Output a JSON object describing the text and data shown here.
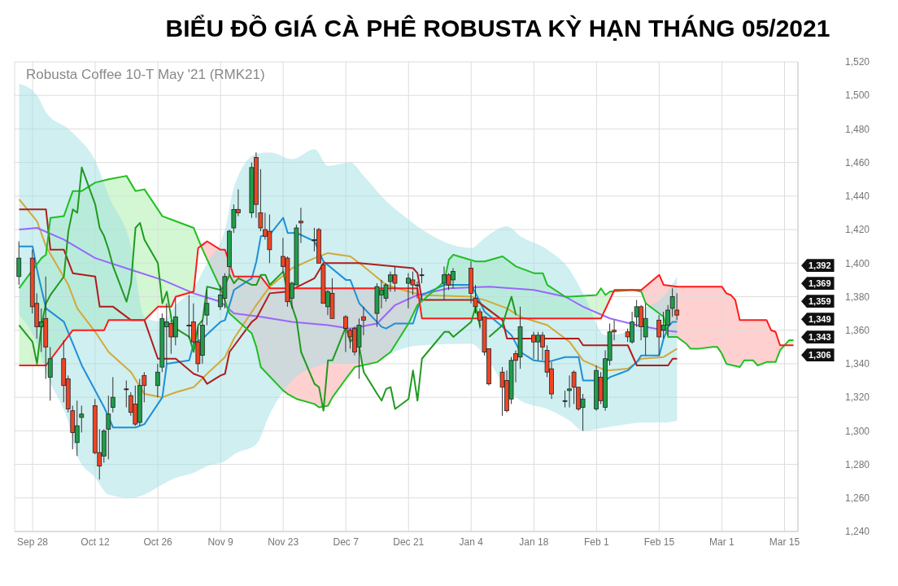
{
  "chart_data": {
    "type": "candlestick",
    "title": "BIỂU ĐỒ GIÁ CÀ PHÊ ROBUSTA KỲ HẠN THÁNG 05/2021",
    "subtitle": "Robusta Coffee 10-T May '21 (RMK21)",
    "x": [
      "2020-09-25",
      "2020-09-28",
      "2020-09-29",
      "2020-09-30",
      "2020-10-01",
      "2020-10-02",
      "2020-10-05",
      "2020-10-06",
      "2020-10-07",
      "2020-10-08",
      "2020-10-09",
      "2020-10-12",
      "2020-10-13",
      "2020-10-14",
      "2020-10-15",
      "2020-10-16",
      "2020-10-19",
      "2020-10-20",
      "2020-10-21",
      "2020-10-22",
      "2020-10-23",
      "2020-10-26",
      "2020-10-27",
      "2020-10-28",
      "2020-10-29",
      "2020-10-30",
      "2020-11-02",
      "2020-11-03",
      "2020-11-04",
      "2020-11-05",
      "2020-11-06",
      "2020-11-09",
      "2020-11-10",
      "2020-11-11",
      "2020-11-12",
      "2020-11-13",
      "2020-11-16",
      "2020-11-17",
      "2020-11-18",
      "2020-11-19",
      "2020-11-20",
      "2020-11-23",
      "2020-11-24",
      "2020-11-25",
      "2020-11-26",
      "2020-11-27",
      "2020-11-30",
      "2020-12-01",
      "2020-12-02",
      "2020-12-03",
      "2020-12-04",
      "2020-12-07",
      "2020-12-08",
      "2020-12-09",
      "2020-12-10",
      "2020-12-11",
      "2020-12-14",
      "2020-12-15",
      "2020-12-16",
      "2020-12-17",
      "2020-12-18",
      "2020-12-21",
      "2020-12-22",
      "2020-12-23",
      "2020-12-24",
      "2020-12-29",
      "2020-12-30",
      "2020-12-31",
      "2021-01-04",
      "2021-01-05",
      "2021-01-06",
      "2021-01-07",
      "2021-01-08",
      "2021-01-11",
      "2021-01-12",
      "2021-01-13",
      "2021-01-14",
      "2021-01-15",
      "2021-01-18",
      "2021-01-19",
      "2021-01-20",
      "2021-01-21",
      "2021-01-22",
      "2021-01-25",
      "2021-01-26",
      "2021-01-27",
      "2021-01-28",
      "2021-01-29",
      "2021-02-01",
      "2021-02-02",
      "2021-02-03",
      "2021-02-04",
      "2021-02-05",
      "2021-02-08",
      "2021-02-09",
      "2021-02-10",
      "2021-02-11",
      "2021-02-12",
      "2021-02-15",
      "2021-02-16",
      "2021-02-17",
      "2021-02-18",
      "2021-02-19"
    ],
    "ohlc": [
      [
        1392,
        1413,
        1387,
        1403
      ],
      [
        1403,
        1408,
        1370,
        1374
      ],
      [
        1376,
        1382,
        1355,
        1362
      ],
      [
        1362,
        1373,
        1347,
        1365
      ],
      [
        1367,
        1392,
        1331,
        1350
      ],
      [
        1332,
        1350,
        1318,
        1343
      ],
      [
        1343,
        1354,
        1317,
        1327
      ],
      [
        1331,
        1333,
        1311,
        1313
      ],
      [
        1312,
        1315,
        1289,
        1299
      ],
      [
        1293,
        1318,
        1285,
        1303
      ],
      [
        1308,
        1315,
        1299,
        1310
      ],
      [
        1315,
        1319,
        1286,
        1287
      ],
      [
        1287,
        1301,
        1271,
        1279
      ],
      [
        1285,
        1301,
        1281,
        1300
      ],
      [
        1301,
        1321,
        1283,
        1310
      ],
      [
        1314,
        1332,
        1311,
        1320
      ],
      [
        1325,
        1330,
        1314,
        1325
      ],
      [
        1321,
        1323,
        1309,
        1311
      ],
      [
        1316,
        1327,
        1303,
        1304
      ],
      [
        1305,
        1331,
        1303,
        1327
      ],
      [
        1333,
        1335,
        1317,
        1327
      ],
      [
        1327,
        1340,
        1320,
        1335
      ],
      [
        1338,
        1370,
        1335,
        1367
      ],
      [
        1362,
        1376,
        1340,
        1365
      ],
      [
        1364,
        1366,
        1346,
        1356
      ],
      [
        1356,
        1379,
        1351,
        1368
      ],
      [
        1363,
        1381,
        1355,
        1363
      ],
      [
        1365,
        1376,
        1352,
        1353
      ],
      [
        1353,
        1362,
        1335,
        1340
      ],
      [
        1345,
        1366,
        1340,
        1363
      ],
      [
        1369,
        1384,
        1363,
        1376
      ],
      [
        1374,
        1387,
        1372,
        1381
      ],
      [
        1379,
        1394,
        1373,
        1392
      ],
      [
        1398,
        1420,
        1393,
        1419
      ],
      [
        1421,
        1435,
        1418,
        1432
      ],
      [
        1432,
        1444,
        1428,
        1430
      ],
      [
        1430,
        1460,
        1427,
        1457
      ],
      [
        1463,
        1466,
        1427,
        1435
      ],
      [
        1430,
        1456,
        1419,
        1421
      ],
      [
        1420,
        1430,
        1414,
        1416
      ],
      [
        1419,
        1429,
        1400,
        1408
      ],
      [
        1404,
        1415,
        1394,
        1398
      ],
      [
        1403,
        1404,
        1374,
        1377
      ],
      [
        1379,
        1389,
        1373,
        1388
      ],
      [
        1387,
        1423,
        1387,
        1421
      ],
      [
        1425,
        1433,
        1412,
        1424
      ],
      [
        1414,
        1421,
        1407,
        1414
      ],
      [
        1420,
        1421,
        1400,
        1400
      ],
      [
        1399,
        1400,
        1376,
        1376
      ],
      [
        1374,
        1384,
        1369,
        1383
      ],
      [
        1382,
        1391,
        1367,
        1367
      ],
      [
        1368,
        1369,
        1347,
        1361
      ],
      [
        1360,
        1361,
        1349,
        1356
      ],
      [
        1361,
        1362,
        1345,
        1347
      ],
      [
        1350,
        1367,
        1331,
        1363
      ],
      [
        1368,
        1374,
        1357,
        1366
      ],
      [
        1370,
        1388,
        1362,
        1386
      ],
      [
        1381,
        1390,
        1373,
        1384
      ],
      [
        1379,
        1388,
        1377,
        1387
      ],
      [
        1389,
        1395,
        1383,
        1393
      ],
      [
        1393,
        1398,
        1383,
        1388
      ],
      [
        1388,
        1394,
        1373,
        1391
      ],
      [
        1390,
        1395,
        1381,
        1387
      ],
      [
        1387,
        1389,
        1379,
        1387
      ],
      [
        1393,
        1397,
        1388,
        1393
      ],
      [
        1388,
        1398,
        1378,
        1393
      ],
      [
        1393,
        1394,
        1384,
        1387
      ],
      [
        1390,
        1397,
        1385,
        1395
      ],
      [
        1397,
        1401,
        1376,
        1382
      ],
      [
        1379,
        1387,
        1370,
        1374
      ],
      [
        1371,
        1373,
        1361,
        1366
      ],
      [
        1368,
        1368,
        1345,
        1347
      ],
      [
        1349,
        1349,
        1327,
        1328
      ],
      [
        1335,
        1338,
        1309,
        1326
      ],
      [
        1330,
        1336,
        1311,
        1312
      ],
      [
        1319,
        1344,
        1316,
        1342
      ],
      [
        1346,
        1348,
        1329,
        1342
      ],
      [
        1344,
        1374,
        1337,
        1362
      ],
      [
        1357,
        1359,
        1343,
        1353
      ],
      [
        1353,
        1359,
        1342,
        1357
      ],
      [
        1357,
        1359,
        1342,
        1350
      ],
      [
        1348,
        1351,
        1332,
        1335
      ],
      [
        1337,
        1341,
        1319,
        1322
      ],
      [
        1318,
        1324,
        1314,
        1318
      ],
      [
        1324,
        1333,
        1314,
        1325
      ],
      [
        1335,
        1336,
        1316,
        1326
      ],
      [
        1326,
        1326,
        1312,
        1313
      ],
      [
        1314,
        1322,
        1300,
        1319
      ],
      [
        1313,
        1339,
        1312,
        1336
      ],
      [
        1332,
        1335,
        1316,
        1318
      ],
      [
        1314,
        1348,
        1312,
        1343
      ],
      [
        1342,
        1364,
        1339,
        1359
      ],
      [
        1360,
        1366,
        1354,
        1359
      ],
      [
        1359,
        1361,
        1353,
        1356
      ],
      [
        1353,
        1371,
        1352,
        1365
      ],
      [
        1368,
        1378,
        1362,
        1374
      ],
      [
        1374,
        1375,
        1354,
        1362
      ],
      [
        1356,
        1376,
        1345,
        1367
      ],
      [
        1366,
        1369,
        1345,
        1356
      ],
      [
        1360,
        1371,
        1355,
        1363
      ],
      [
        1363,
        1375,
        1357,
        1372
      ],
      [
        1373,
        1385,
        1368,
        1380
      ],
      [
        1372,
        1382,
        1366,
        1369
      ]
    ],
    "colors": [
      "#1f9d4a",
      "#ee4424",
      "#ee4424",
      "#1f9d4a",
      "#ee4424",
      "#1f9d4a",
      "#ee4424",
      "#ee4424",
      "#ee4424",
      "#1f9d4a",
      "#1f9d4a",
      "#ee4424",
      "#ee4424",
      "#1f9d4a",
      "#1f9d4a",
      "#1f9d4a",
      "#222222",
      "#ee4424",
      "#ee4424",
      "#1f9d4a",
      "#ee4424",
      "#1f9d4a",
      "#1f9d4a",
      "#1f9d4a",
      "#ee4424",
      "#1f9d4a",
      "#222222",
      "#ee4424",
      "#ee4424",
      "#1f9d4a",
      "#1f9d4a",
      "#1f9d4a",
      "#1f9d4a",
      "#1f9d4a",
      "#1f9d4a",
      "#ee4424",
      "#1f9d4a",
      "#ee4424",
      "#ee4424",
      "#ee4424",
      "#ee4424",
      "#ee4424",
      "#ee4424",
      "#1f9d4a",
      "#1f9d4a",
      "#ee4424",
      "#222222",
      "#ee4424",
      "#ee4424",
      "#1f9d4a",
      "#ee4424",
      "#ee4424",
      "#ee4424",
      "#ee4424",
      "#1f9d4a",
      "#ee4424",
      "#1f9d4a",
      "#1f9d4a",
      "#1f9d4a",
      "#1f9d4a",
      "#ee4424",
      "#1f9d4a",
      "#ee4424",
      "#222222",
      "#222222",
      "#1f9d4a",
      "#ee4424",
      "#1f9d4a",
      "#ee4424",
      "#ee4424",
      "#ee4424",
      "#ee4424",
      "#ee4424",
      "#ee4424",
      "#ee4424",
      "#1f9d4a",
      "#ee4424",
      "#1f9d4a",
      "#ee4424",
      "#1f9d4a",
      "#ee4424",
      "#ee4424",
      "#ee4424",
      "#222222",
      "#1f9d4a",
      "#ee4424",
      "#ee4424",
      "#1f9d4a",
      "#1f9d4a",
      "#ee4424",
      "#1f9d4a",
      "#1f9d4a",
      "#ee4424",
      "#ee4424",
      "#1f9d4a",
      "#1f9d4a",
      "#ee4424",
      "#1f9d4a",
      "#ee4424",
      "#1f9d4a",
      "#1f9d4a",
      "#1f9d4a",
      "#ee4424"
    ],
    "series": [
      {
        "type": "line",
        "color": "#d4a838",
        "x": [
          "2020-09-25",
          "2020-09-29",
          "2020-10-01",
          "2020-10-06",
          "2020-10-08",
          "2020-10-12",
          "2020-10-15",
          "2020-10-20",
          "2020-10-23",
          "2020-10-27",
          "2020-10-30",
          "2020-11-03",
          "2020-11-06",
          "2020-11-10",
          "2020-11-12",
          "2020-11-17",
          "2020-11-20",
          "2020-11-25",
          "2020-11-30",
          "2020-12-03",
          "2020-12-08",
          "2020-12-11",
          "2020-12-16",
          "2020-12-21",
          "2020-12-24",
          "2021-01-04",
          "2021-01-07",
          "2021-01-12",
          "2021-01-15",
          "2021-01-21",
          "2021-01-26",
          "2021-01-29",
          "2021-02-03",
          "2021-02-08",
          "2021-02-11",
          "2021-02-16",
          "2021-02-19"
        ],
        "values": [
          1438,
          1425,
          1410,
          1387,
          1373,
          1359,
          1347,
          1335,
          1322,
          1320,
          1323,
          1326,
          1334,
          1344,
          1355,
          1375,
          1386,
          1397,
          1403,
          1406,
          1404,
          1398,
          1387,
          1383,
          1381,
          1380,
          1378,
          1373,
          1368,
          1363,
          1353,
          1342,
          1336,
          1337,
          1343,
          1344,
          1349
        ],
        "lower": [
          1369,
          1352,
          1335,
          1305,
          1285,
          1272,
          1262,
          1260,
          1262,
          1268,
          1272,
          1275,
          1279,
          1282,
          1286,
          1292,
          1310,
          1330,
          1338,
          1340,
          1340,
          1340,
          1345,
          1350,
          1351,
          1352,
          1345,
          1325,
          1318,
          1313,
          1306,
          1300,
          1302,
          1304,
          1305,
          1305,
          1306
        ],
        "upper": [
          1507,
          1500,
          1490,
          1480,
          1475,
          1461,
          1440,
          1410,
          1368,
          1365,
          1375,
          1385,
          1400,
          1420,
          1445,
          1465,
          1466,
          1462,
          1468,
          1458,
          1460,
          1452,
          1437,
          1426,
          1420,
          1409,
          1415,
          1422,
          1416,
          1408,
          1396,
          1382,
          1357,
          1359,
          1371,
          1380,
          1392
        ]
      },
      {
        "type": "line",
        "color": "#9966ff",
        "x": [
          "2020-09-25",
          "2020-09-29",
          "2020-10-05",
          "2020-10-12",
          "2020-10-20",
          "2020-10-27",
          "2020-11-03",
          "2020-11-09",
          "2020-11-12",
          "2020-11-18",
          "2020-11-25",
          "2020-12-03",
          "2020-12-08",
          "2020-12-14",
          "2020-12-18",
          "2020-12-23",
          "2020-12-30",
          "2021-01-08",
          "2021-01-18",
          "2021-01-25",
          "2021-01-29",
          "2021-02-04",
          "2021-02-10",
          "2021-02-16",
          "2021-02-19"
        ],
        "values": [
          1420,
          1421,
          1414,
          1403,
          1396,
          1390,
          1382,
          1377,
          1370,
          1368,
          1365,
          1363,
          1361,
          1364,
          1375,
          1381,
          1385,
          1386,
          1384,
          1380,
          1374,
          1367,
          1363,
          1360,
          1359
        ]
      },
      {
        "type": "line",
        "color": "#1e8fd6",
        "x": [
          "2020-09-25",
          "2020-09-28",
          "2020-09-29",
          "2020-10-01",
          "2020-10-05",
          "2020-10-07",
          "2020-10-09",
          "2020-10-14",
          "2020-10-16",
          "2020-10-21",
          "2020-10-23",
          "2020-10-27",
          "2020-10-28",
          "2020-11-02",
          "2020-11-03",
          "2020-11-05",
          "2020-11-09",
          "2020-11-10",
          "2020-11-12",
          "2020-11-16",
          "2020-11-17",
          "2020-11-18",
          "2020-11-20",
          "2020-11-23",
          "2020-11-24",
          "2020-11-26",
          "2020-11-30",
          "2020-12-02",
          "2020-12-07",
          "2020-12-08",
          "2020-12-10",
          "2020-12-15",
          "2020-12-16",
          "2020-12-18",
          "2020-12-22",
          "2020-12-24",
          "2020-12-29",
          "2021-01-04",
          "2021-01-05",
          "2021-01-07",
          "2021-01-11",
          "2021-01-13",
          "2021-01-15",
          "2021-01-18",
          "2021-01-21",
          "2021-01-25",
          "2021-01-28",
          "2021-01-29",
          "2021-02-03",
          "2021-02-04",
          "2021-02-08",
          "2021-02-10",
          "2021-02-11",
          "2021-02-15",
          "2021-02-16",
          "2021-02-17",
          "2021-02-18",
          "2021-02-19"
        ],
        "values": [
          1410,
          1410,
          1396,
          1373,
          1365,
          1352,
          1339,
          1314,
          1302,
          1302,
          1304,
          1320,
          1340,
          1342,
          1352,
          1355,
          1365,
          1366,
          1384,
          1391,
          1401,
          1416,
          1417,
          1427,
          1418,
          1418,
          1413,
          1401,
          1390,
          1390,
          1376,
          1362,
          1361,
          1364,
          1364,
          1381,
          1387,
          1387,
          1382,
          1371,
          1362,
          1357,
          1347,
          1342,
          1341,
          1344,
          1344,
          1330,
          1330,
          1332,
          1336,
          1341,
          1345,
          1345,
          1355,
          1362,
          1365,
          1365
        ]
      },
      {
        "type": "line",
        "color": "#b01c1c",
        "x": [
          "2020-09-25",
          "2020-10-01",
          "2020-10-02",
          "2020-10-05",
          "2020-10-07",
          "2020-10-12",
          "2020-10-13",
          "2020-10-16",
          "2020-10-20",
          "2020-10-23",
          "2020-10-26",
          "2020-10-30",
          "2020-11-03",
          "2020-11-05",
          "2020-11-06",
          "2020-11-09",
          "2020-11-10",
          "2020-11-11",
          "2020-11-16",
          "2020-11-17",
          "2020-11-20",
          "2020-11-24",
          "2020-11-30",
          "2020-12-02",
          "2020-12-10",
          "2020-12-22",
          "2020-12-23",
          "2020-12-24",
          "2021-01-05",
          "2021-01-11",
          "2021-01-12",
          "2021-01-15",
          "2021-01-28",
          "2021-01-29",
          "2021-02-08",
          "2021-02-10",
          "2021-02-17",
          "2021-02-18",
          "2021-02-19"
        ],
        "values": [
          1432,
          1432,
          1408,
          1408,
          1394,
          1392,
          1374,
          1374,
          1366,
          1366,
          1343,
          1343,
          1334,
          1332,
          1328,
          1333,
          1334,
          1347,
          1365,
          1367,
          1382,
          1383,
          1391,
          1400,
          1400,
          1397,
          1394,
          1378,
          1378,
          1366,
          1355,
          1355,
          1355,
          1351,
          1351,
          1339,
          1339,
          1343,
          1343
        ]
      },
      {
        "type": "line",
        "color": "#1fbf1f",
        "x": [
          "2020-09-25",
          "2020-09-30",
          "2020-10-01",
          "2020-10-02",
          "2020-10-05",
          "2020-10-07",
          "2020-10-09",
          "2020-10-12",
          "2020-10-15",
          "2020-10-19",
          "2020-10-21",
          "2020-10-23",
          "2020-10-27",
          "2020-10-30",
          "2020-11-03",
          "2020-11-05",
          "2020-11-09",
          "2020-11-11",
          "2020-11-16",
          "2020-11-17",
          "2020-11-18",
          "2020-11-23",
          "2020-11-24",
          "2020-11-26",
          "2020-11-30",
          "2020-12-01",
          "2020-12-03",
          "2020-12-04",
          "2020-12-07",
          "2020-12-09",
          "2020-12-14",
          "2020-12-17",
          "2020-12-21",
          "2020-12-23",
          "2020-12-29",
          "2020-12-30",
          "2020-12-31",
          "2021-01-05",
          "2021-01-07",
          "2021-01-11",
          "2021-01-13",
          "2021-01-14",
          "2021-01-18",
          "2021-01-20",
          "2021-01-21",
          "2021-01-25",
          "2021-01-26",
          "2021-02-01",
          "2021-02-02",
          "2021-02-03",
          "2021-02-04",
          "2021-02-09",
          "2021-02-11",
          "2021-02-12",
          "2021-02-16",
          "2021-02-17",
          "2021-02-19",
          "2021-02-21",
          "2021-02-22",
          "2021-02-24",
          "2021-02-27",
          "2021-02-28",
          "2021-03-01",
          "2021-03-02",
          "2021-03-05",
          "2021-03-06",
          "2021-03-08",
          "2021-03-09",
          "2021-03-11",
          "2021-03-13",
          "2021-03-14",
          "2021-03-16",
          "2021-03-17"
        ],
        "values": [
          1385,
          1403,
          1405,
          1427,
          1428,
          1443,
          1443,
          1448,
          1450,
          1452,
          1443,
          1444,
          1428,
          1425,
          1421,
          1408,
          1385,
          1370,
          1358,
          1350,
          1338,
          1324,
          1322,
          1319,
          1316,
          1314,
          1315,
          1320,
          1331,
          1338,
          1341,
          1347,
          1364,
          1375,
          1389,
          1402,
          1405,
          1401,
          1401,
          1404,
          1400,
          1398,
          1394,
          1394,
          1387,
          1380,
          1380,
          1381,
          1385,
          1381,
          1383,
          1384,
          1383,
          1376,
          1368,
          1356,
          1356,
          1352,
          1349,
          1349,
          1350,
          1350,
          1346,
          1340,
          1338,
          1342,
          1342,
          1339,
          1341,
          1341,
          1348,
          1354,
          1354
        ]
      },
      {
        "type": "line",
        "color": "#ff1a1a",
        "x": [
          "2020-09-25",
          "2020-10-01",
          "2020-10-07",
          "2020-10-14",
          "2020-10-15",
          "2020-10-23",
          "2020-10-26",
          "2020-10-29",
          "2020-10-30",
          "2020-11-03",
          "2020-11-04",
          "2020-11-05",
          "2020-11-06",
          "2020-11-09",
          "2020-11-10",
          "2020-11-12",
          "2020-11-18",
          "2020-11-20",
          "2020-12-23",
          "2020-12-24",
          "2021-02-02",
          "2021-02-05",
          "2021-02-11",
          "2021-02-15",
          "2021-02-16",
          "2021-02-19",
          "2021-03-01",
          "2021-03-02",
          "2021-03-03",
          "2021-03-04",
          "2021-03-05",
          "2021-03-11",
          "2021-03-12",
          "2021-03-13",
          "2021-03-14",
          "2021-03-17"
        ],
        "values": [
          1339,
          1339,
          1360,
          1360,
          1366,
          1366,
          1374,
          1374,
          1380,
          1383,
          1409,
          1411,
          1413,
          1408,
          1408,
          1392,
          1392,
          1385,
          1385,
          1367,
          1367,
          1384,
          1384,
          1393,
          1387,
          1386,
          1386,
          1382,
          1381,
          1378,
          1366,
          1366,
          1360,
          1359,
          1351,
          1351
        ]
      },
      {
        "type": "line",
        "color": "#1f9a1f",
        "x": [
          "2020-09-25",
          "2020-09-28",
          "2020-09-29",
          "2020-09-30",
          "2020-10-01",
          "2020-10-02",
          "2020-10-05",
          "2020-10-06",
          "2020-10-07",
          "2020-10-08",
          "2020-10-09",
          "2020-10-12",
          "2020-10-13",
          "2020-10-14",
          "2020-10-15",
          "2020-10-16",
          "2020-10-19",
          "2020-10-20",
          "2020-10-21",
          "2020-10-22",
          "2020-10-23",
          "2020-10-26",
          "2020-10-27",
          "2020-10-28",
          "2020-10-29",
          "2020-10-30",
          "2020-11-02",
          "2020-11-03",
          "2020-11-04",
          "2020-11-05",
          "2020-11-06",
          "2020-11-09",
          "2020-11-10",
          "2020-11-11",
          "2020-11-12",
          "2020-11-13",
          "2020-11-16",
          "2020-11-17",
          "2020-11-18",
          "2020-11-19",
          "2020-11-20",
          "2020-11-23",
          "2020-11-24",
          "2020-11-25",
          "2020-11-26",
          "2020-11-27",
          "2020-11-30",
          "2020-12-01",
          "2020-12-02",
          "2020-12-03",
          "2020-12-04",
          "2020-12-07",
          "2020-12-08",
          "2020-12-09",
          "2020-12-10",
          "2020-12-11",
          "2020-12-14",
          "2020-12-15",
          "2020-12-16",
          "2020-12-17",
          "2020-12-18",
          "2020-12-21",
          "2020-12-22",
          "2020-12-23",
          "2020-12-24",
          "2020-12-29",
          "2020-12-30",
          "2020-12-31",
          "2021-01-04",
          "2021-01-05",
          "2021-01-06",
          "2021-01-07",
          "2021-01-08",
          "2021-01-11",
          "2021-01-12",
          "2021-01-13",
          "2021-01-14"
        ],
        "values": [
          1363,
          1353,
          1340,
          1363,
          1376,
          1381,
          1392,
          1419,
          1432,
          1430,
          1457,
          1435,
          1421,
          1416,
          1408,
          1398,
          1377,
          1388,
          1421,
          1424,
          1414,
          1400,
          1376,
          1383,
          1367,
          1361,
          1356,
          1347,
          1363,
          1366,
          1386,
          1384,
          1387,
          1393,
          1388,
          1391,
          1387,
          1387,
          1393,
          1393,
          1387,
          1395,
          1382,
          1374,
          1366,
          1347,
          1328,
          1326,
          1312,
          1342,
          1342,
          1362,
          1353,
          1357,
          1350,
          1335,
          1322,
          1318,
          1325,
          1326,
          1313,
          1319,
          1336,
          1318,
          1343,
          1359,
          1359,
          1356,
          1365,
          1374,
          1362,
          null,
          1356,
          1363,
          1372,
          1380,
          1369
        ]
      }
    ],
    "xlim": [
      "2020-09-24",
      "2021-03-18"
    ],
    "xticks": [
      {
        "value": "2020-09-28",
        "label": "Sep 28"
      },
      {
        "value": "2020-10-12",
        "label": "Oct 12"
      },
      {
        "value": "2020-10-26",
        "label": "Oct 26"
      },
      {
        "value": "2020-11-09",
        "label": "Nov 9"
      },
      {
        "value": "2020-11-23",
        "label": "Nov 23"
      },
      {
        "value": "2020-12-07",
        "label": "Dec 7"
      },
      {
        "value": "2020-12-21",
        "label": "Dec 21"
      },
      {
        "value": "2021-01-04",
        "label": "Jan 4"
      },
      {
        "value": "2021-01-18",
        "label": "Jan 18"
      },
      {
        "value": "2021-02-01",
        "label": "Feb 1"
      },
      {
        "value": "2021-02-15",
        "label": "Feb 15"
      },
      {
        "value": "2021-03-01",
        "label": "Mar 1"
      },
      {
        "value": "2021-03-15",
        "label": "Mar 15"
      }
    ],
    "ylim": [
      1240,
      1520
    ],
    "yticks": [
      {
        "value": 1240,
        "label": "1,240"
      },
      {
        "value": 1260,
        "label": "1,260"
      },
      {
        "value": 1280,
        "label": "1,280"
      },
      {
        "value": 1300,
        "label": "1,300"
      },
      {
        "value": 1320,
        "label": "1,320"
      },
      {
        "value": 1340,
        "label": "1,340"
      },
      {
        "value": 1360,
        "label": "1,360"
      },
      {
        "value": 1380,
        "label": "1,380"
      },
      {
        "value": 1400,
        "label": "1,400"
      },
      {
        "value": 1420,
        "label": "1,420"
      },
      {
        "value": 1440,
        "label": "1,440"
      },
      {
        "value": 1460,
        "label": "1,460"
      },
      {
        "value": 1480,
        "label": "1,480"
      },
      {
        "value": 1500,
        "label": "1,500"
      },
      {
        "value": 1520,
        "label": "1,520"
      }
    ],
    "grid": true,
    "annotations": [
      "1,392",
      "1,369",
      "1,359",
      "1,349",
      "1,343",
      "1,306"
    ]
  }
}
